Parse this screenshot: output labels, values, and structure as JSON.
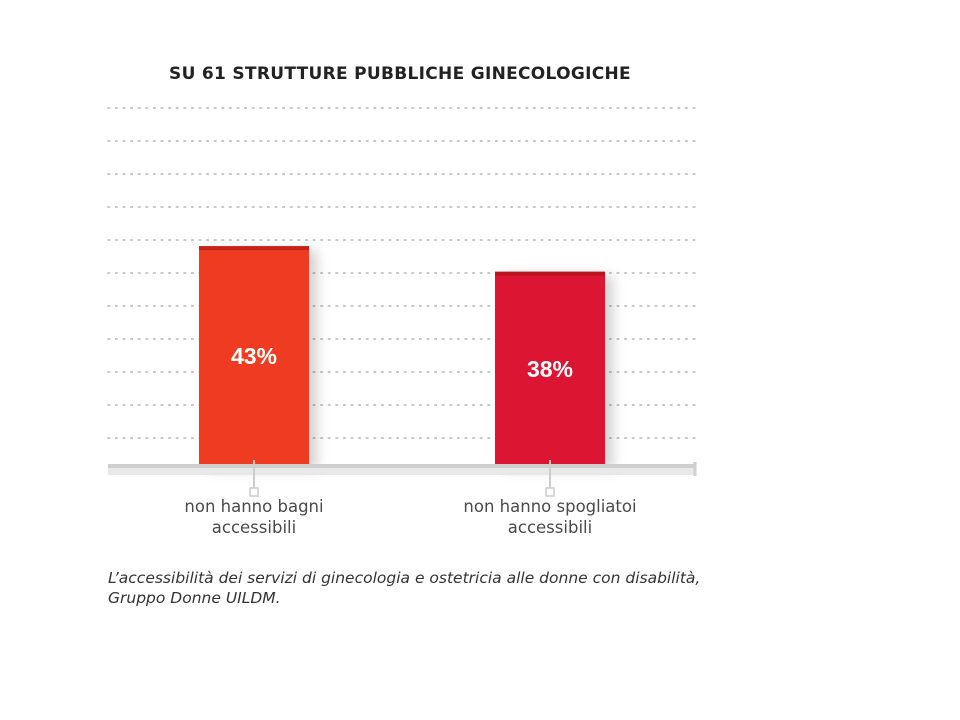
{
  "chart_data": {
    "type": "bar",
    "title": "SU 61 STRUTTURE PUBBLICHE GINECOLOGICHE",
    "categories": [
      "non hanno bagni accessibili",
      "non hanno spogliatoi accessibili"
    ],
    "values": [
      43,
      38
    ],
    "value_labels": [
      "43%",
      "38%"
    ],
    "bar_colors": [
      "#ee3b24",
      "#dc1530"
    ],
    "ylim": [
      0,
      70
    ],
    "grid": "dotted horizontal",
    "xlabel": "",
    "ylabel": ""
  },
  "source": "L’accessibilità dei servizi di ginecologia e ostetricia alle donne con disabilità, Gruppo Donne UILDM."
}
